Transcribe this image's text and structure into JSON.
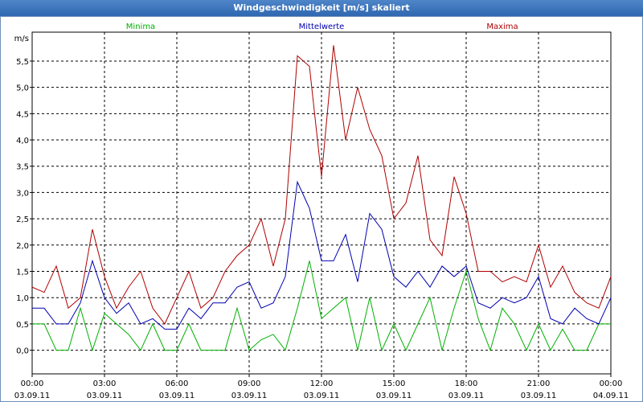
{
  "window": {
    "title": "Windgeschwindigkeit [m/s] skaliert"
  },
  "colors": {
    "min": "#00b000",
    "mean": "#0000b0",
    "max": "#b00000",
    "grid": "#000000"
  },
  "chart_data": {
    "type": "line",
    "title": "Windgeschwindigkeit [m/s] skaliert",
    "ylabel": "m/s",
    "xlabel": "",
    "ylim": [
      -0.45,
      6.05
    ],
    "xlim": [
      0,
      24
    ],
    "y_ticks": [
      0.0,
      0.5,
      1.0,
      1.5,
      2.0,
      2.5,
      3.0,
      3.5,
      4.0,
      4.5,
      5.0,
      5.5
    ],
    "y_tick_labels": [
      "0,0",
      "0,5",
      "1,0",
      "1,5",
      "2,0",
      "2,5",
      "3,0",
      "3,5",
      "4,0",
      "4,5",
      "5,0",
      "5,5"
    ],
    "x_ticks": [
      0,
      3,
      6,
      9,
      12,
      15,
      18,
      21,
      24
    ],
    "x_tick_labels": [
      {
        "time": "00:00",
        "date": "03.09.11"
      },
      {
        "time": "03:00",
        "date": "03.09.11"
      },
      {
        "time": "06:00",
        "date": "03.09.11"
      },
      {
        "time": "09:00",
        "date": "03.09.11"
      },
      {
        "time": "12:00",
        "date": "03.09.11"
      },
      {
        "time": "15:00",
        "date": "03.09.11"
      },
      {
        "time": "18:00",
        "date": "03.09.11"
      },
      {
        "time": "21:00",
        "date": "03.09.11"
      },
      {
        "time": "00:00",
        "date": "04.09.11"
      }
    ],
    "grid": true,
    "x_hours": [
      0,
      0.5,
      1,
      1.5,
      2,
      2.5,
      3,
      3.5,
      4,
      4.5,
      5,
      5.5,
      6,
      6.5,
      7,
      7.5,
      8,
      8.5,
      9,
      9.5,
      10,
      10.5,
      11,
      11.5,
      12,
      12.5,
      13,
      13.5,
      14,
      14.5,
      15,
      15.5,
      16,
      16.5,
      17,
      17.5,
      18,
      18.5,
      19,
      19.5,
      20,
      20.5,
      21,
      21.5,
      22,
      22.5,
      23,
      23.5,
      24
    ],
    "series": [
      {
        "name": "Minima",
        "key": "min",
        "values": [
          0.5,
          0.5,
          0.0,
          0.0,
          0.8,
          0.0,
          0.7,
          0.5,
          0.3,
          0.0,
          0.5,
          0.0,
          0.0,
          0.5,
          0.0,
          0.0,
          0.0,
          0.8,
          0.0,
          0.2,
          0.3,
          0.0,
          0.8,
          1.7,
          0.6,
          0.8,
          1.0,
          0.0,
          1.0,
          0.0,
          0.5,
          0.0,
          0.5,
          1.0,
          0.0,
          0.8,
          1.5,
          0.6,
          0.0,
          0.8,
          0.5,
          0.0,
          0.5,
          0.0,
          0.4,
          0.0,
          0.0,
          0.5,
          0.5
        ]
      },
      {
        "name": "Mittelwerte",
        "key": "mean",
        "values": [
          0.8,
          0.8,
          0.5,
          0.5,
          0.9,
          1.7,
          1.0,
          0.7,
          0.9,
          0.5,
          0.6,
          0.4,
          0.4,
          0.8,
          0.6,
          0.9,
          0.9,
          1.2,
          1.3,
          0.8,
          0.9,
          1.4,
          3.2,
          2.7,
          1.7,
          1.7,
          2.2,
          1.3,
          2.6,
          2.3,
          1.4,
          1.2,
          1.5,
          1.2,
          1.6,
          1.4,
          1.6,
          0.9,
          0.8,
          1.0,
          0.9,
          1.0,
          1.4,
          0.6,
          0.5,
          0.8,
          0.6,
          0.5,
          1.0
        ]
      },
      {
        "name": "Maxima",
        "key": "max",
        "values": [
          1.2,
          1.1,
          1.6,
          0.8,
          1.0,
          2.3,
          1.4,
          0.8,
          1.2,
          1.5,
          0.8,
          0.5,
          1.0,
          1.5,
          0.8,
          1.0,
          1.5,
          1.8,
          2.0,
          2.5,
          1.6,
          2.5,
          5.6,
          5.4,
          3.3,
          5.8,
          4.0,
          5.0,
          4.2,
          3.7,
          2.5,
          2.8,
          3.7,
          2.1,
          1.8,
          3.3,
          2.6,
          1.5,
          1.5,
          1.3,
          1.4,
          1.3,
          2.0,
          1.2,
          1.6,
          1.1,
          0.9,
          0.8,
          1.4
        ]
      }
    ]
  }
}
